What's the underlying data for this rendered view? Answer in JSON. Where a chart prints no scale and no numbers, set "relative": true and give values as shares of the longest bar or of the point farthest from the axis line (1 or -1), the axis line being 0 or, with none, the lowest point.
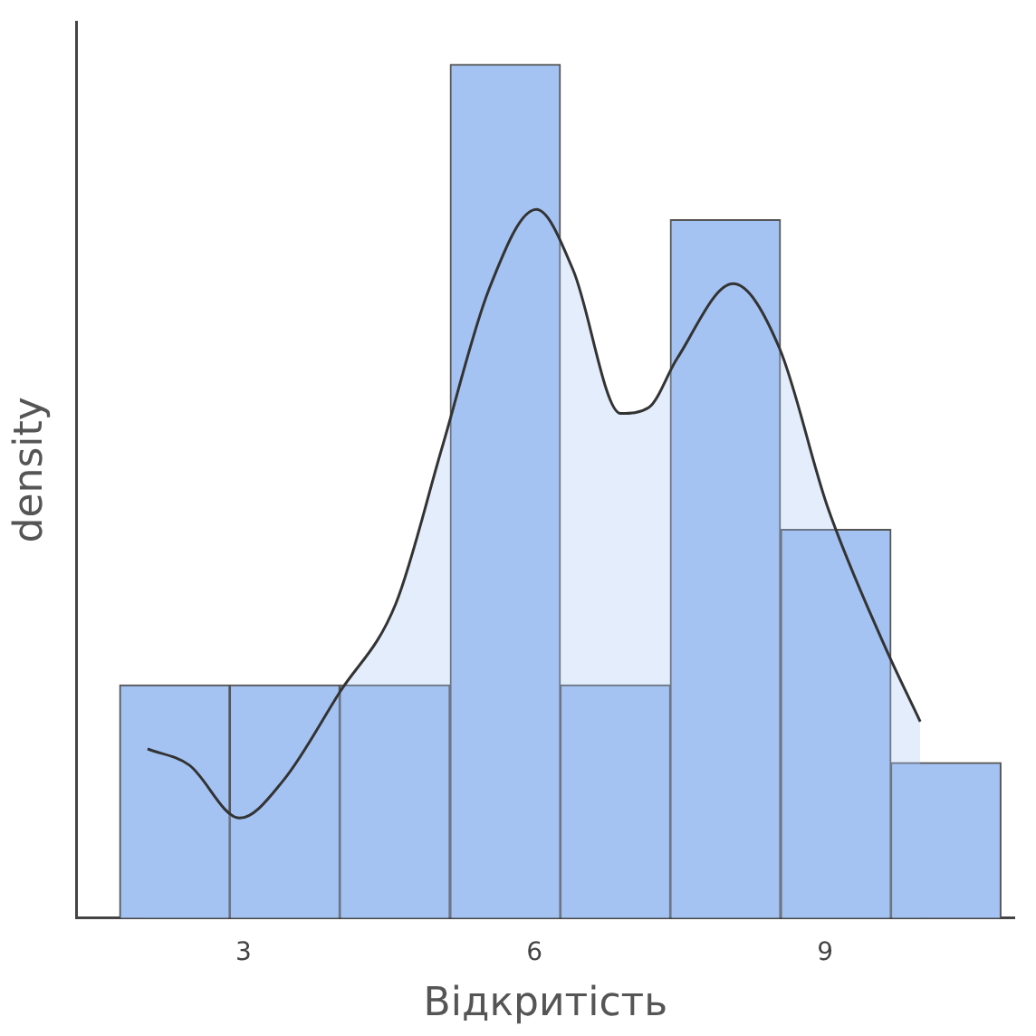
{
  "chart_data": {
    "type": "histogram",
    "relative": true,
    "xlabel": "Відкритість",
    "ylabel": "density",
    "bins": [
      1.72,
      2.86,
      3.99,
      5.13,
      6.27,
      7.4,
      8.54,
      9.68,
      10.81
    ],
    "values": [
      0.273,
      0.273,
      0.273,
      1,
      0.273,
      0.818,
      0.455,
      0.182
    ],
    "color": "#a4c3f2",
    "xlim": [
      1.28,
      10.95
    ],
    "xticks": [
      3,
      6,
      9
    ],
    "grid": false,
    "legend": false,
    "series": [
      {
        "type": "area",
        "color": "#333333",
        "x": [
          2.01,
          2.44,
          2.96,
          3.41,
          3.99,
          4.57,
          5.05,
          5.53,
          6.02,
          6.4,
          6.89,
          7.18,
          7.47,
          8.05,
          8.53,
          9.02,
          9.6,
          9.98
        ],
        "values": [
          0.198,
          0.179,
          0.117,
          0.161,
          0.264,
          0.368,
          0.552,
          0.736,
          0.83,
          0.759,
          0.591,
          0.598,
          0.655,
          0.743,
          0.667,
          0.483,
          0.322,
          0.23
        ]
      }
    ]
  }
}
